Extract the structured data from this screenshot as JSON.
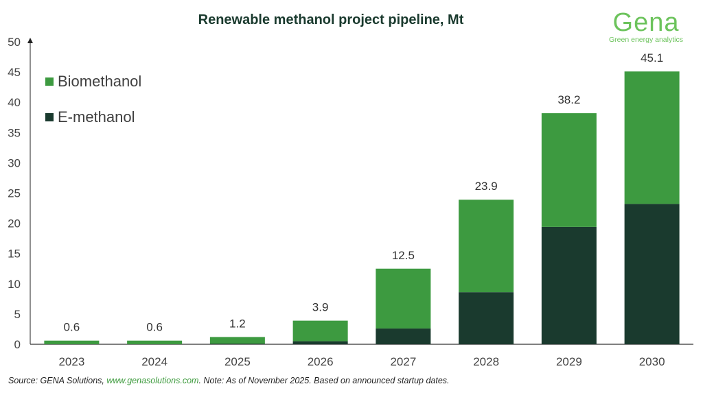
{
  "chart_data": {
    "type": "bar",
    "stacked": true,
    "title": "Renewable methanol project pipeline, Mt",
    "categories": [
      "2023",
      "2024",
      "2025",
      "2026",
      "2027",
      "2028",
      "2029",
      "2030"
    ],
    "series": [
      {
        "name": "E-methanol",
        "color": "#1a3a2e",
        "values": [
          0,
          0,
          0.1,
          0.5,
          2.6,
          8.6,
          19.4,
          23.2
        ]
      },
      {
        "name": "Biomethanol",
        "color": "#3d9a40",
        "values": [
          0.6,
          0.6,
          1.1,
          3.4,
          9.9,
          15.3,
          18.8,
          21.9
        ]
      }
    ],
    "totals": [
      "0.6",
      "0.6",
      "1.2",
      "3.9",
      "12.5",
      "23.9",
      "38.2",
      "45.1"
    ],
    "ylim": [
      0,
      50
    ],
    "yticks": [
      "0",
      "5",
      "10",
      "15",
      "20",
      "25",
      "30",
      "35",
      "40",
      "45",
      "50"
    ],
    "grid": false,
    "legend_placement": "top-left"
  },
  "logo": {
    "name": "Gena",
    "tagline": "Green energy analytics"
  },
  "source": {
    "prefix": "Source: GENA Solutions, ",
    "link": "www.genasolutions.com",
    "suffix": ". Note: As of November 2025. Based on announced startup dates."
  }
}
